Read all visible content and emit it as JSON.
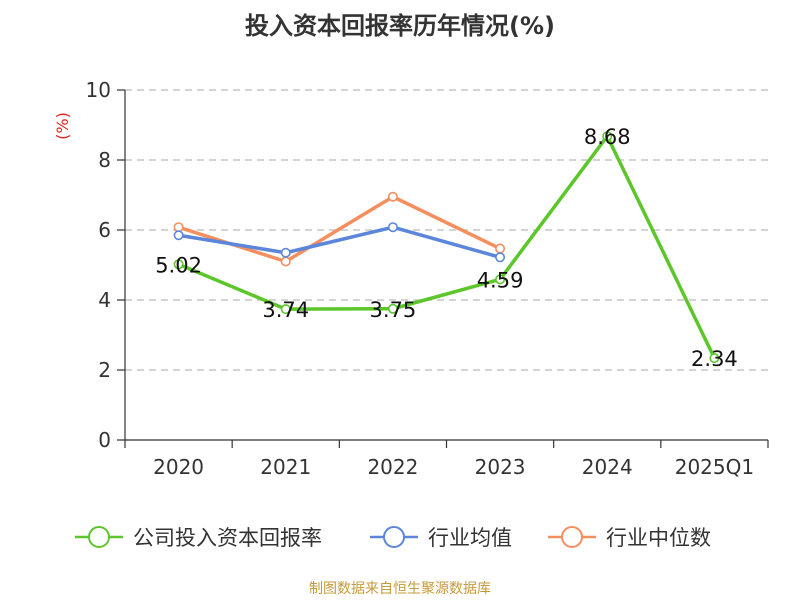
{
  "chart_data": {
    "type": "line",
    "title": "投入资本回报率历年情况(%)",
    "ylabel": "(%)",
    "xlabel": "",
    "categories": [
      "2020",
      "2021",
      "2022",
      "2023",
      "2024",
      "2025Q1"
    ],
    "ylim": [
      0,
      10
    ],
    "yticks": [
      0,
      2,
      4,
      6,
      8,
      10
    ],
    "grid": true,
    "legend_position": "bottom",
    "series": [
      {
        "name": "公司投入资本回报率",
        "color": "#5cc62b",
        "values": [
          5.02,
          3.74,
          3.75,
          4.59,
          8.68,
          2.34
        ],
        "labels": [
          "5.02",
          "3.74",
          "3.75",
          "4.59",
          "8.68",
          "2.34"
        ]
      },
      {
        "name": "行业均值",
        "color": "#5b86d9",
        "values": [
          5.85,
          5.35,
          6.08,
          5.22,
          null,
          null
        ]
      },
      {
        "name": "行业中位数",
        "color": "#f58f5f",
        "values": [
          6.08,
          5.1,
          6.95,
          5.47,
          null,
          null
        ]
      }
    ]
  },
  "source": {
    "text": "制图数据来自恒生聚源数据库",
    "color": "#c59a3a"
  }
}
